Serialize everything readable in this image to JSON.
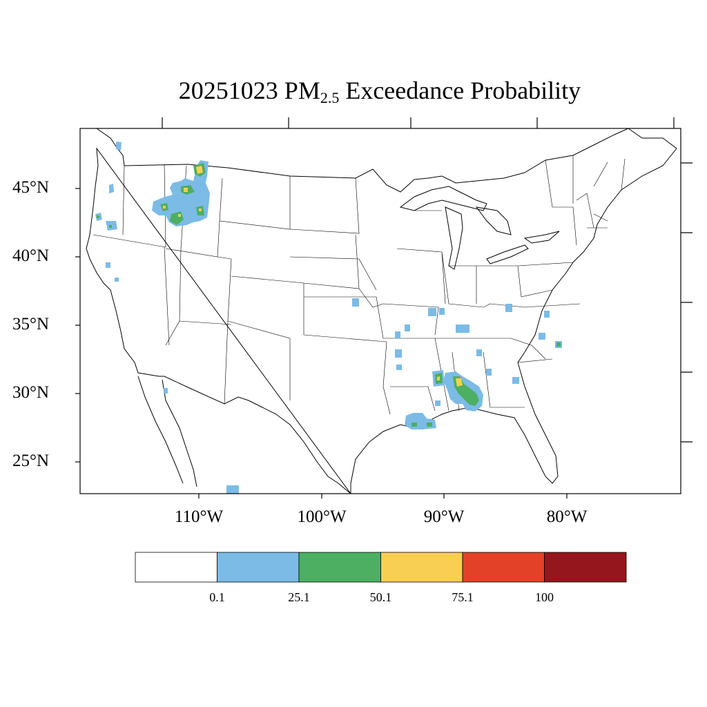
{
  "title": {
    "prefix": "20251023 PM",
    "subscript": "2.5",
    "suffix": " Exceedance Probability"
  },
  "axes": {
    "lat_labels": [
      "45°N",
      "40°N",
      "35°N",
      "30°N",
      "25°N"
    ],
    "lon_labels": [
      "110°W",
      "100°W",
      "90°W",
      "80°W"
    ]
  },
  "colorbar": {
    "labels": [
      "0.1",
      "25.1",
      "50.1",
      "75.1",
      "100"
    ],
    "bins": [
      {
        "range": "below 0.1",
        "color": "#ffffff"
      },
      {
        "range": "0.1-25.1",
        "color": "#7bbbe6"
      },
      {
        "range": "25.1-50.1",
        "color": "#4caf62"
      },
      {
        "range": "50.1-75.1",
        "color": "#f8cf52"
      },
      {
        "range": "75.1-100",
        "color": "#e34128"
      },
      {
        "range": "above 100",
        "color": "#95161c"
      }
    ]
  },
  "map_data": {
    "type": "probability-contour-map",
    "region": "Contiguous United States",
    "variable": "PM2.5 exceedance probability (%)",
    "date": "20251023",
    "probability_areas": [
      {
        "region": "Idaho-Montana",
        "max_bin": "50.1-75.1"
      },
      {
        "region": "Oregon coast",
        "max_bin": "25.1-50.1"
      },
      {
        "region": "Mississippi-Alabama",
        "max_bin": "50.1-75.1"
      },
      {
        "region": "Louisiana coast",
        "max_bin": "25.1-50.1"
      },
      {
        "region": "North Carolina",
        "max_bin": "25.1-50.1"
      },
      {
        "region": "Kansas",
        "max_bin": "0.1-25.1"
      },
      {
        "region": "Illinois",
        "max_bin": "0.1-25.1"
      },
      {
        "region": "Tennessee",
        "max_bin": "0.1-25.1"
      },
      {
        "region": "Georgia",
        "max_bin": "0.1-25.1"
      },
      {
        "region": "Arkansas",
        "max_bin": "0.1-25.1"
      },
      {
        "region": "Mexico (Sinaloa)",
        "max_bin": "0.1-25.1"
      }
    ]
  }
}
